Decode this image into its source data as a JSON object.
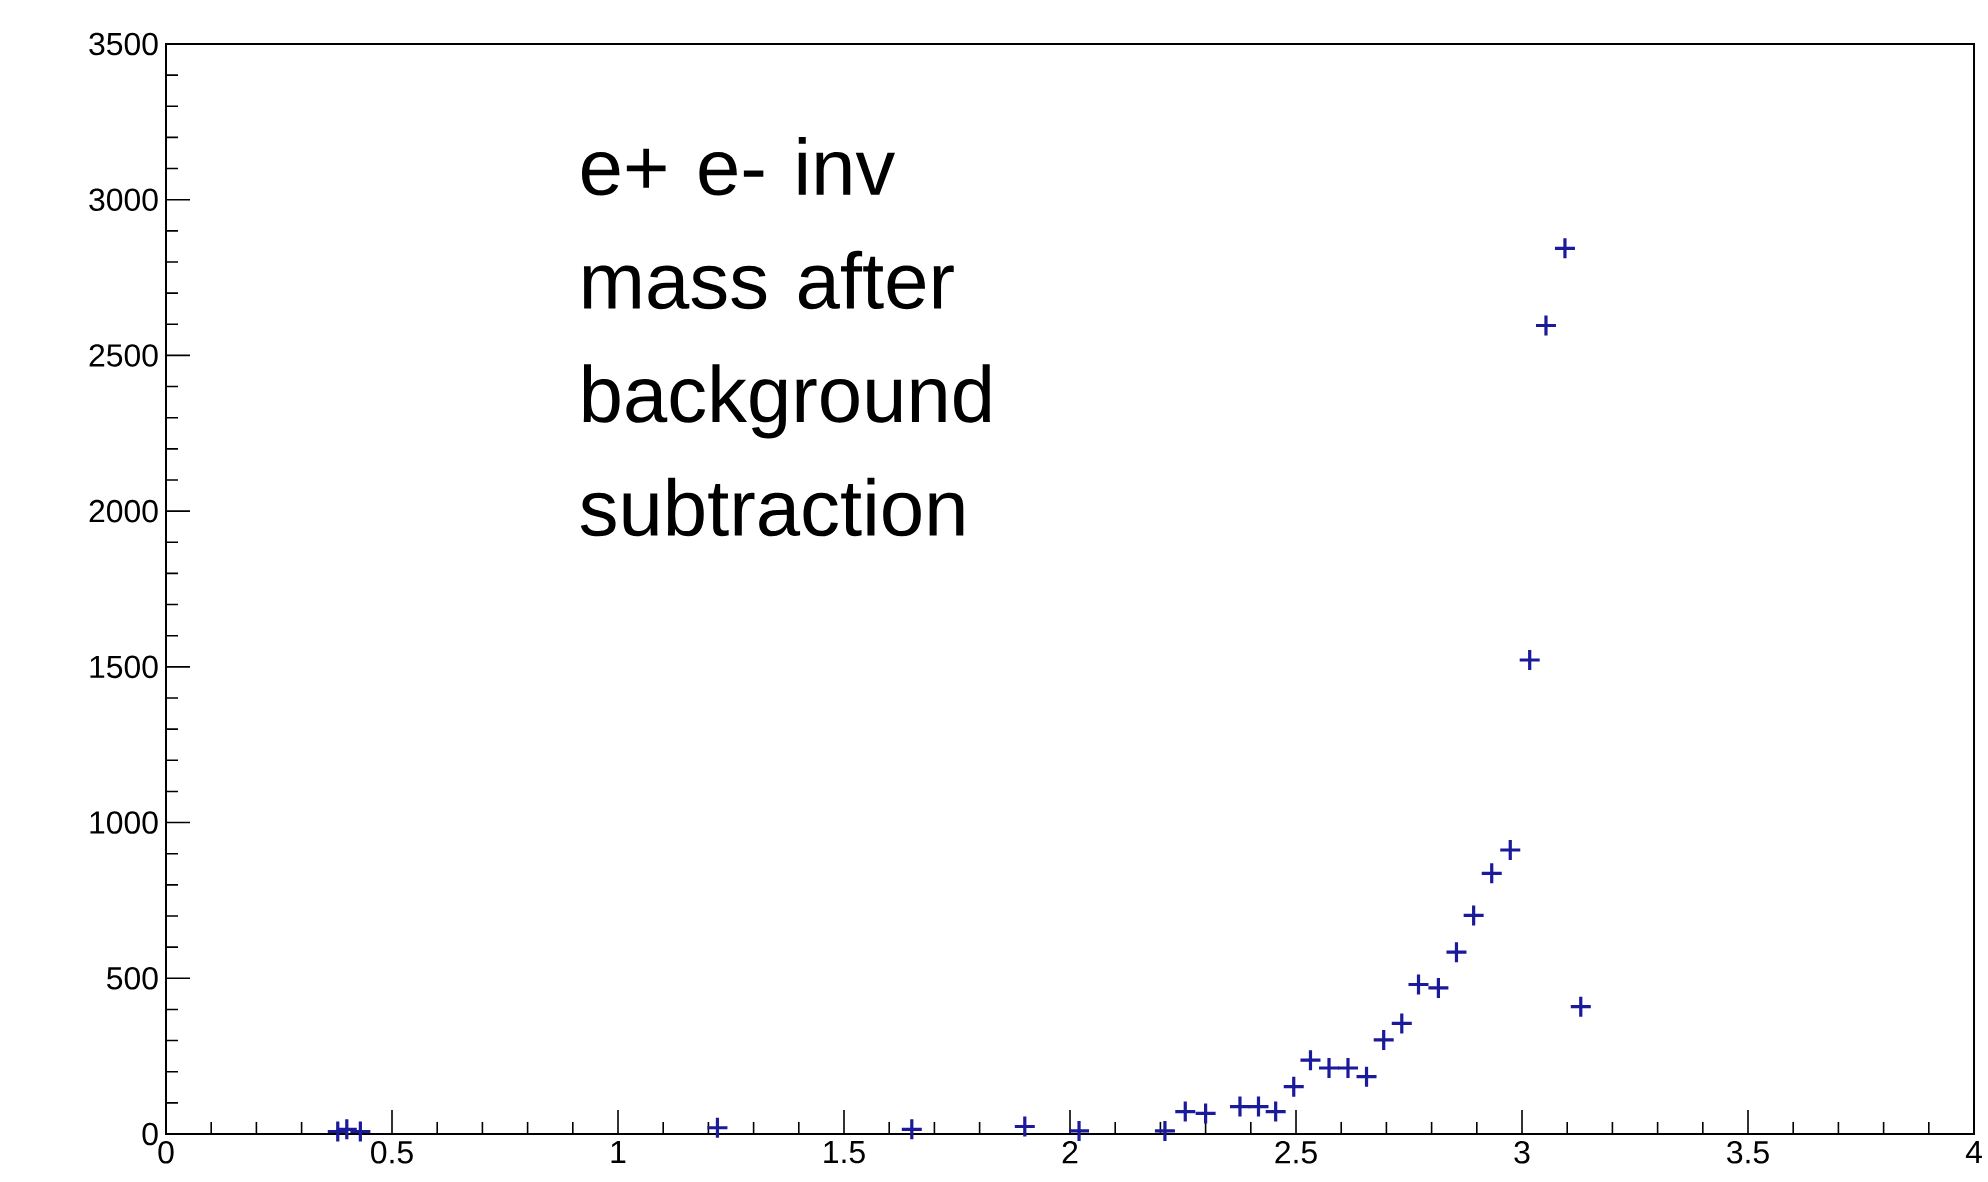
{
  "chart_data": {
    "type": "scatter",
    "marker": "cross",
    "grid": false,
    "xlim": [
      0,
      4
    ],
    "xticks": [
      0,
      0.5,
      1,
      1.5,
      2,
      2.5,
      3,
      3.5,
      4
    ],
    "ylim": [
      0,
      3500
    ],
    "yticks": [
      0,
      500,
      1000,
      1500,
      2000,
      2500,
      3000,
      3500
    ],
    "annotations": [
      "e+ e- inv mass after background subtraction"
    ],
    "series": [
      {
        "color": "#1a1a9a",
        "x": [
          0.38,
          0.4,
          0.43,
          1.22,
          1.65,
          1.9,
          2.02,
          2.21,
          2.255,
          2.3,
          2.376,
          2.417,
          2.455,
          2.495,
          2.532,
          2.573,
          2.615,
          2.656,
          2.694,
          2.734,
          2.771,
          2.815,
          2.855,
          2.893,
          2.933,
          2.974,
          3.017,
          3.053,
          3.095,
          3.13
        ],
        "values": [
          8,
          15,
          8,
          20,
          15,
          24,
          10,
          10,
          72,
          66,
          88,
          88,
          72,
          152,
          237,
          212,
          212,
          184,
          302,
          355,
          480,
          469,
          584,
          702,
          837,
          912,
          1522,
          2596,
          2844,
          409
        ]
      }
    ]
  }
}
